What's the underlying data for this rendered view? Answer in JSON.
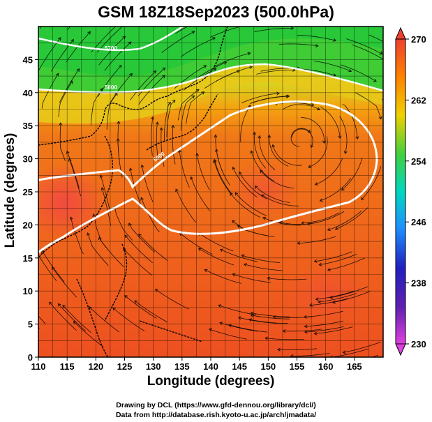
{
  "title": "GSM 18Z18Sep2023 (500.0hPa)",
  "xlabel": "Longitude (degrees)",
  "ylabel": "Latitude  (degrees)",
  "credits": {
    "line1": "Drawing by DCL (https://www.gfd-dennou.org/library/dcl/)",
    "line2": "Data from http://database.rish.kyoto-u.ac.jp/arch/jmadata/"
  },
  "contour_labels": [
    "5700",
    "5800",
    "5900"
  ],
  "chart_data": {
    "type": "heatmap",
    "projection": "lon-lat",
    "xlim": [
      110,
      170
    ],
    "ylim": [
      0,
      50
    ],
    "x_ticks": [
      110,
      115,
      120,
      125,
      130,
      135,
      140,
      145,
      150,
      155,
      160,
      165
    ],
    "y_ticks": [
      0,
      5,
      10,
      15,
      20,
      25,
      30,
      35,
      40,
      45
    ],
    "grid": true,
    "colorbar": {
      "min": 230,
      "max": 270,
      "ticks": [
        270,
        262,
        254,
        246,
        238,
        230
      ],
      "colors": [
        "#e040e0",
        "#2020c0",
        "#1e90ff",
        "#00d8c0",
        "#40d040",
        "#f0d000",
        "#ff8000",
        "#f04030"
      ]
    }
  }
}
